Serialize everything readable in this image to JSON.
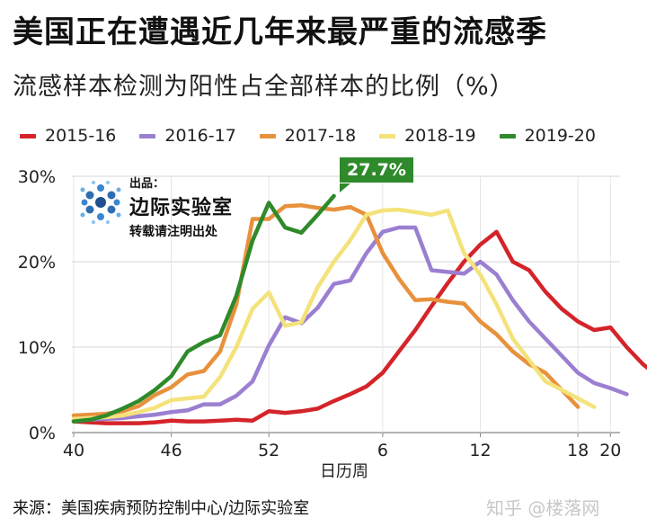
{
  "header": {
    "title": "美国正在遭遇近几年来最严重的流感季",
    "subtitle": "流感样本检测为阳性占全部样本的比例（%）"
  },
  "legend": [
    {
      "label": "2015-16",
      "color": "#d4242a"
    },
    {
      "label": "2016-17",
      "color": "#9b7fd1"
    },
    {
      "label": "2017-18",
      "color": "#e8913c"
    },
    {
      "label": "2018-19",
      "color": "#f4e27a"
    },
    {
      "label": "2019-20",
      "color": "#2e8a2a"
    }
  ],
  "logo": {
    "small": "出品：",
    "name": "边际实验室",
    "note": "转载请注明出处"
  },
  "peak_label": "27.7%",
  "footer": {
    "source": "来源：美国疾病预防控制中心/边际实验室",
    "watermark": "知乎 @楼落网"
  },
  "chart_data": {
    "type": "line",
    "title": "美国正在遭遇近几年来最严重的流感季",
    "subtitle": "流感样本检测为阳性占全部样本的比例（%）",
    "xlabel": "日历周",
    "ylabel": "",
    "ylim": [
      0,
      30
    ],
    "yticks": [
      0,
      10,
      20,
      30
    ],
    "ytick_labels": [
      "0%",
      "10%",
      "20%",
      "30%"
    ],
    "xticks": [
      40,
      46,
      52,
      6,
      12,
      18,
      20
    ],
    "x_index_range": [
      0,
      32
    ],
    "xtick_index": [
      0,
      6,
      12,
      19,
      25,
      31,
      33
    ],
    "grid": "horizontal",
    "legend_position": "top",
    "series": [
      {
        "name": "2015-16",
        "color": "#d4242a",
        "values": [
          1.3,
          1.2,
          1.1,
          1.1,
          1.1,
          1.2,
          1.4,
          1.3,
          1.3,
          1.4,
          1.5,
          1.4,
          2.5,
          2.3,
          2.5,
          2.8,
          3.7,
          4.5,
          5.4,
          7.0,
          9.5,
          12.0,
          14.8,
          17.5,
          20.0,
          22.0,
          23.5,
          20.0,
          19.0,
          16.5,
          14.5,
          13.0,
          12.0,
          12.3,
          10.0,
          8.0,
          6.5,
          5.8
        ]
      },
      {
        "name": "2016-17",
        "color": "#9b7fd1",
        "values": [
          1.5,
          1.5,
          1.6,
          1.7,
          1.9,
          2.1,
          2.4,
          2.6,
          3.3,
          3.3,
          4.3,
          6.0,
          10.2,
          13.5,
          12.8,
          14.6,
          17.4,
          17.8,
          21.0,
          23.5,
          24.0,
          24.0,
          19.0,
          18.8,
          18.6,
          20.0,
          18.5,
          15.5,
          13.0,
          11.0,
          9.0,
          7.0,
          5.8,
          5.2,
          4.5
        ]
      },
      {
        "name": "2017-18",
        "color": "#e8913c",
        "values": [
          2.0,
          2.1,
          2.2,
          2.5,
          3.1,
          4.4,
          5.3,
          6.8,
          7.2,
          9.5,
          15.0,
          25.0,
          25.0,
          26.5,
          26.6,
          26.3,
          26.1,
          26.4,
          25.5,
          21.0,
          18.0,
          15.5,
          15.6,
          15.3,
          15.1,
          13.0,
          11.5,
          9.5,
          8.0,
          7.0,
          5.0,
          3.0
        ]
      },
      {
        "name": "2018-19",
        "color": "#f4e27a",
        "values": [
          1.6,
          1.7,
          1.8,
          2.0,
          2.4,
          2.9,
          3.8,
          4.0,
          4.2,
          6.5,
          10.0,
          14.5,
          16.4,
          12.5,
          12.9,
          17.0,
          20.0,
          22.5,
          25.5,
          26.0,
          26.1,
          25.8,
          25.5,
          26.0,
          21.0,
          18.5,
          15.0,
          11.0,
          8.5,
          6.0,
          5.0,
          4.0,
          3.0
        ]
      },
      {
        "name": "2019-20",
        "color": "#2e8a2a",
        "values": [
          1.3,
          1.5,
          2.0,
          2.8,
          3.7,
          5.0,
          6.6,
          9.5,
          10.6,
          11.4,
          16.0,
          22.5,
          26.9,
          24.0,
          23.4,
          25.5,
          27.7
        ]
      }
    ]
  }
}
